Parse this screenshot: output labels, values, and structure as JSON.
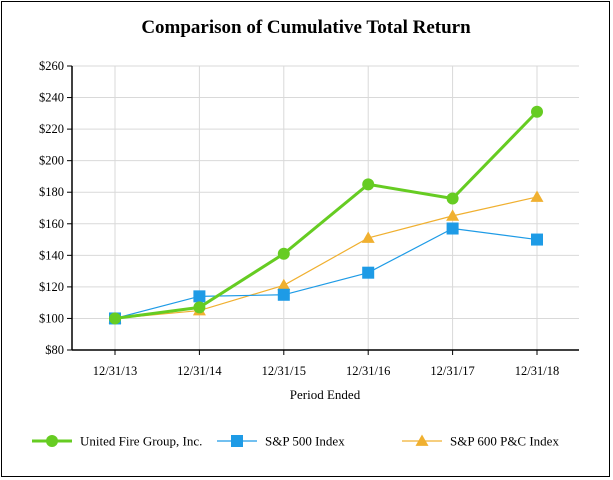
{
  "chart_data": {
    "type": "line",
    "title": "Comparison of Cumulative Total Return",
    "xlabel": "Period Ended",
    "ylabel": "",
    "categories": [
      "12/31/13",
      "12/31/14",
      "12/31/15",
      "12/31/16",
      "12/31/17",
      "12/31/18"
    ],
    "ylim": [
      80,
      260
    ],
    "yticks": [
      80,
      100,
      120,
      140,
      160,
      180,
      200,
      220,
      240,
      260
    ],
    "ytick_labels": [
      "$80",
      "$100",
      "$120",
      "$140",
      "$160",
      "$180",
      "$200",
      "$220",
      "$240",
      "$260"
    ],
    "grid": true,
    "legend_position": "bottom",
    "series": [
      {
        "name": "United Fire Group, Inc.",
        "values": [
          100,
          107,
          141,
          185,
          176,
          231
        ],
        "color": "#66cc22",
        "marker": "circle"
      },
      {
        "name": "S&P 500 Index",
        "values": [
          100,
          114,
          115,
          129,
          157,
          150
        ],
        "color": "#1e9be6",
        "marker": "square"
      },
      {
        "name": "S&P 600 P&C Index",
        "values": [
          100,
          105,
          121,
          151,
          165,
          177
        ],
        "color": "#f0b030",
        "marker": "triangle"
      }
    ]
  }
}
